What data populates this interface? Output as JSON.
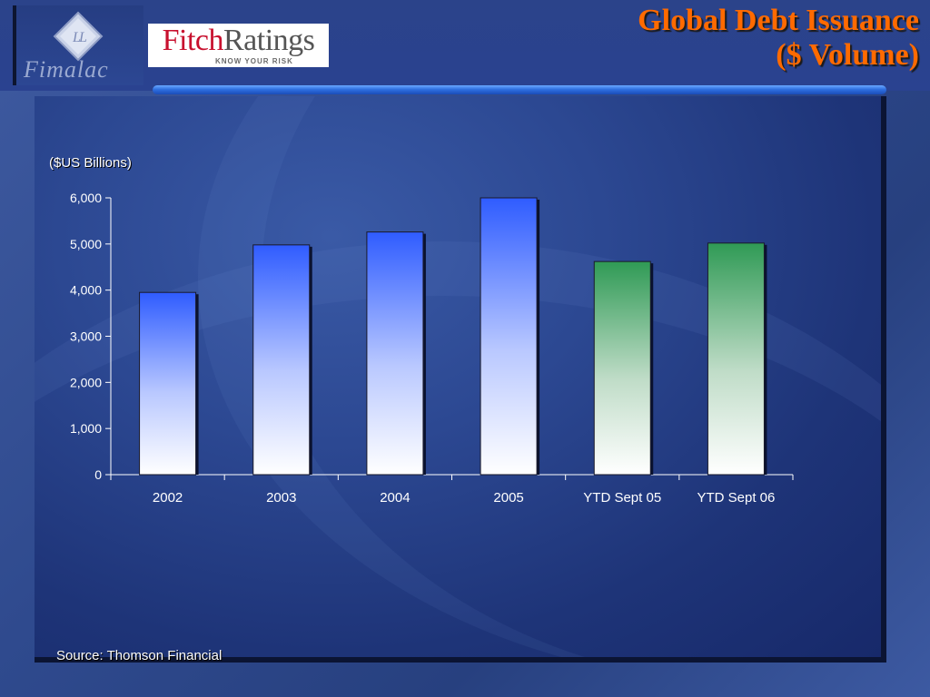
{
  "header": {
    "company_logo_text": "Fimalac",
    "brand_logo_main": "Fitch",
    "brand_logo_second": "Ratings",
    "brand_tagline": "KNOW YOUR RISK",
    "title_line1": "Global Debt Issuance",
    "title_line2": "($ Volume)"
  },
  "footer": {
    "source": "Source: Thomson Financial"
  },
  "colors": {
    "title": "#ff6a00",
    "bar_blue_top": "#2f5cff",
    "bar_green_top": "#2f9a55",
    "bar_bottom": "#ffffff",
    "axis": "#ffffff"
  },
  "chart_data": {
    "type": "bar",
    "ylabel": "($US Billions)",
    "categories": [
      "2002",
      "2003",
      "2004",
      "2005",
      "YTD Sept 05",
      "YTD Sept 06"
    ],
    "values": [
      3950,
      4980,
      5260,
      6000,
      4620,
      5020
    ],
    "bar_colors": [
      "blue",
      "blue",
      "blue",
      "blue",
      "green",
      "green"
    ],
    "ylim": [
      0,
      6000
    ],
    "yticks": [
      0,
      1000,
      2000,
      3000,
      4000,
      5000,
      6000
    ],
    "ytick_labels": [
      "0",
      "1,000",
      "2,000",
      "3,000",
      "4,000",
      "5,000",
      "6,000"
    ],
    "grid": false,
    "legend": "none"
  }
}
